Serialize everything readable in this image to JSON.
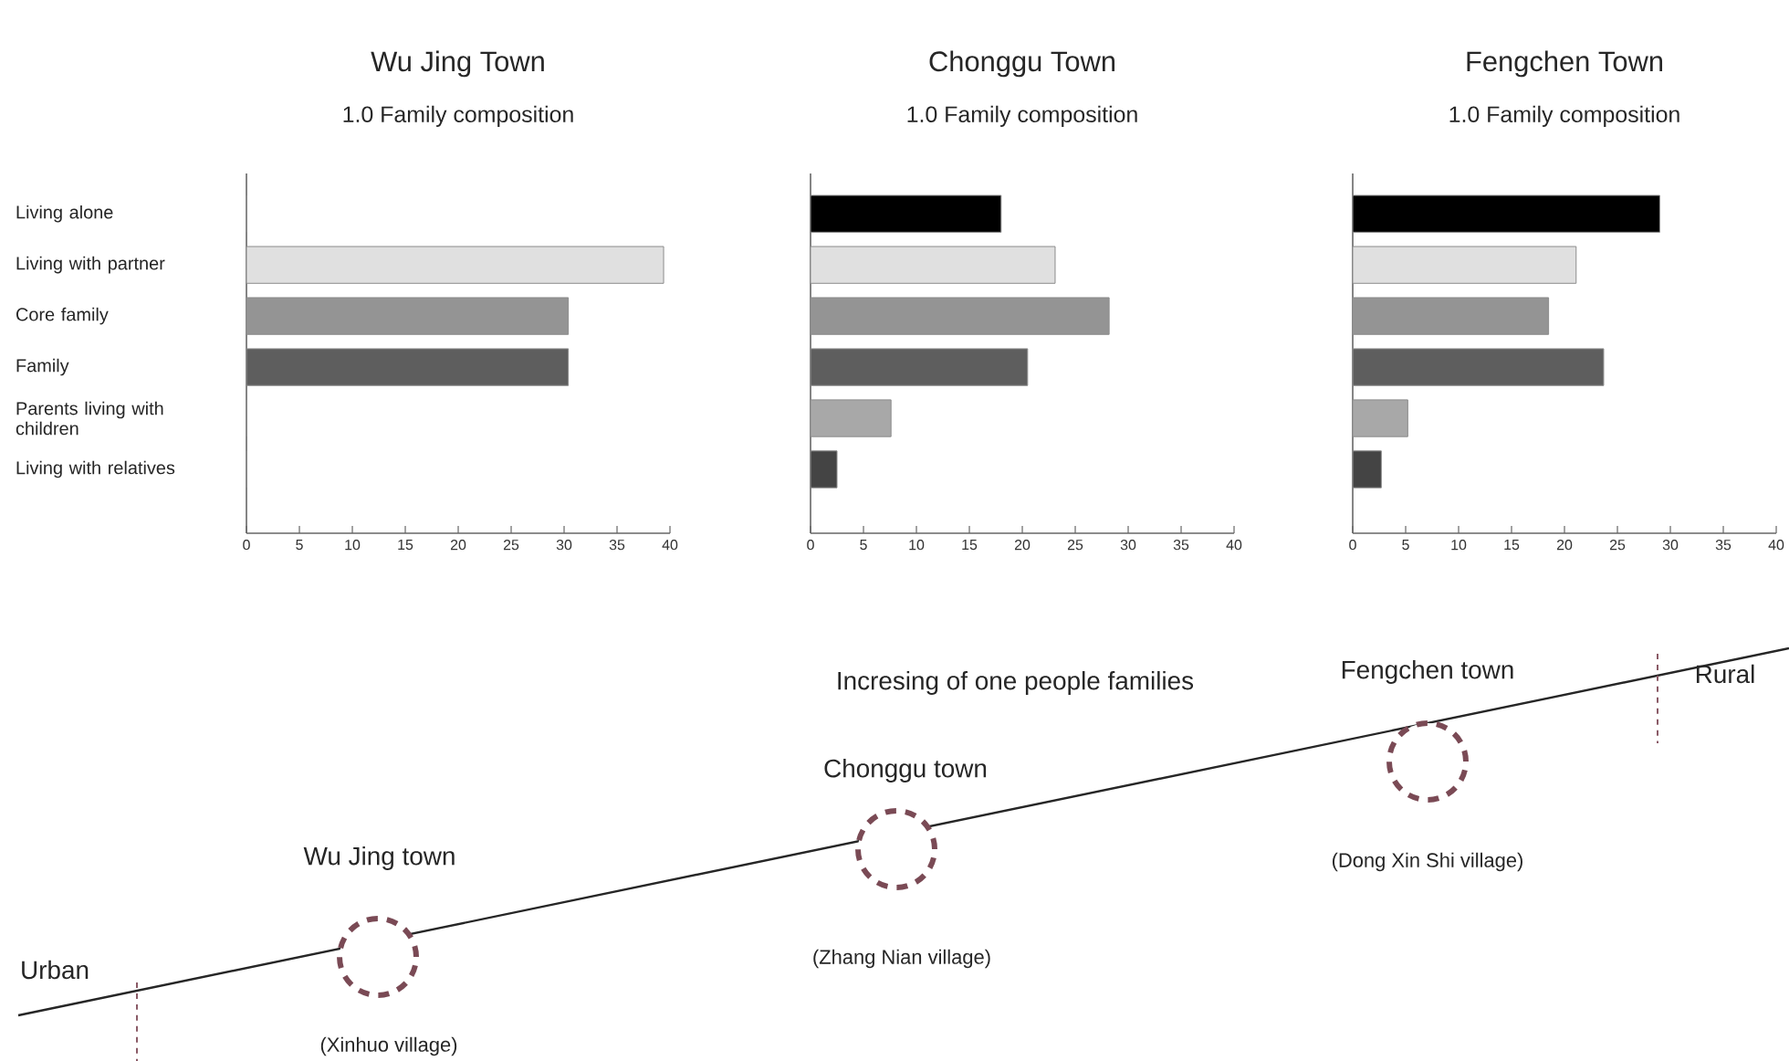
{
  "chart_data": [
    {
      "type": "bar",
      "orientation": "horizontal",
      "title": "Wu Jing Town",
      "subtitle": "1.0 Family composition",
      "categories": [
        "Living alone",
        "Living with partner",
        "Core family",
        "Family",
        "Parents living with children",
        "Living with relatives"
      ],
      "values": [
        0,
        39.4,
        30.4,
        30.4,
        0,
        0
      ],
      "colors": [
        "#000000",
        "#e0e0e0",
        "#949494",
        "#5e5e5e",
        "#a8a8a8",
        "#444444"
      ],
      "xlim": [
        0,
        40
      ],
      "xticks": [
        0,
        5,
        10,
        15,
        20,
        25,
        30,
        35,
        40
      ]
    },
    {
      "type": "bar",
      "orientation": "horizontal",
      "title": "Chonggu Town",
      "subtitle": "1.0 Family composition",
      "categories": [
        null,
        null,
        null,
        null,
        null,
        null
      ],
      "values": [
        18,
        23.1,
        28.2,
        20.5,
        7.6,
        2.5
      ],
      "colors": [
        "#000000",
        "#e0e0e0",
        "#949494",
        "#5e5e5e",
        "#a8a8a8",
        "#444444"
      ],
      "xlim": [
        0,
        40
      ],
      "xticks": [
        0,
        5,
        10,
        15,
        20,
        25,
        30,
        35,
        40
      ]
    },
    {
      "type": "bar",
      "orientation": "horizontal",
      "title": "Fengchen Town",
      "subtitle": "1.0 Family composition",
      "categories": [
        null,
        null,
        null,
        null,
        null,
        null
      ],
      "values": [
        29,
        21.1,
        18.5,
        23.7,
        5.2,
        2.7
      ],
      "colors": [
        "#000000",
        "#e0e0e0",
        "#949494",
        "#5e5e5e",
        "#a8a8a8",
        "#444444"
      ],
      "xlim": [
        0,
        40
      ],
      "xticks": [
        0,
        5,
        10,
        15,
        20,
        25,
        30,
        35,
        40
      ]
    },
    {
      "type": "other",
      "annotations": [
        "Incresing of one people families",
        "Urban",
        "Wu Jing town",
        "(Xinhuo village)",
        "Chonggu town",
        "(Zhang Nian village)",
        "Fengchen town",
        "(Dong Xin Shi village)",
        "Rural"
      ]
    }
  ]
}
